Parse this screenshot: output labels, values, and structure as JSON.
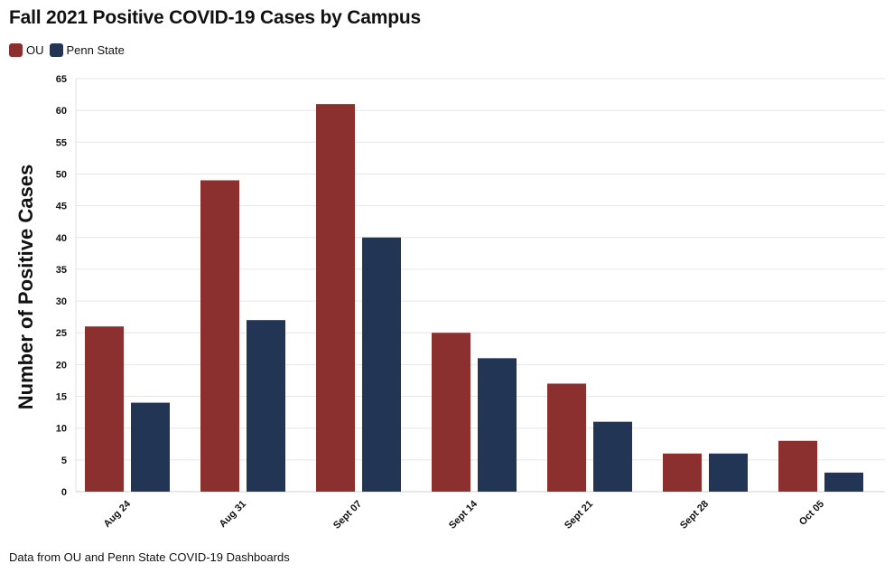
{
  "chart_data": {
    "type": "bar",
    "title": "Fall 2021 Positive COVID-19 Cases by Campus",
    "xlabel": "",
    "ylabel": "Number of Positive Cases",
    "categories": [
      "Aug 24",
      "Aug 31",
      "Sept 07",
      "Sept 14",
      "Sept 21",
      "Sept 28",
      "Oct 05"
    ],
    "series": [
      {
        "name": "OU",
        "color": "#8b2f2f",
        "values": [
          26,
          49,
          61,
          25,
          17,
          6,
          8
        ]
      },
      {
        "name": "Penn State",
        "color": "#223554",
        "values": [
          14,
          27,
          40,
          21,
          11,
          6,
          3
        ]
      }
    ],
    "ylim": [
      0,
      65
    ],
    "yticks": [
      0,
      5,
      10,
      15,
      20,
      25,
      30,
      35,
      40,
      45,
      50,
      55,
      60,
      65
    ],
    "grid": true,
    "legend_position": "top-left"
  },
  "footer": "Data from OU and Penn State COVID-19 Dashboards"
}
